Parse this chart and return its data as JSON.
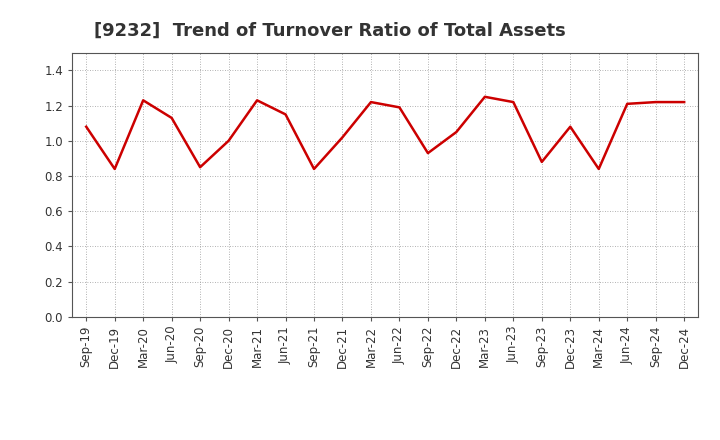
{
  "title": "[9232]  Trend of Turnover Ratio of Total Assets",
  "x_labels": [
    "Sep-19",
    "Dec-19",
    "Mar-20",
    "Jun-20",
    "Sep-20",
    "Dec-20",
    "Mar-21",
    "Jun-21",
    "Sep-21",
    "Dec-21",
    "Mar-22",
    "Jun-22",
    "Sep-22",
    "Dec-22",
    "Mar-23",
    "Jun-23",
    "Sep-23",
    "Dec-23",
    "Mar-24",
    "Jun-24",
    "Sep-24",
    "Dec-24"
  ],
  "y_values": [
    1.08,
    0.84,
    1.23,
    1.13,
    0.85,
    1.0,
    1.23,
    1.15,
    0.84,
    1.02,
    1.22,
    1.19,
    0.93,
    1.05,
    1.25,
    1.22,
    0.88,
    1.08,
    0.84,
    1.21,
    1.22,
    1.22
  ],
  "line_color": "#cc0000",
  "line_width": 1.8,
  "ylim": [
    0.0,
    1.5
  ],
  "yticks": [
    0.0,
    0.2,
    0.4,
    0.6,
    0.8,
    1.0,
    1.2,
    1.4
  ],
  "background_color": "#ffffff",
  "plot_bg_color": "#ffffff",
  "grid_color": "#999999",
  "title_fontsize": 13,
  "tick_fontsize": 8.5,
  "title_color": "#333333"
}
